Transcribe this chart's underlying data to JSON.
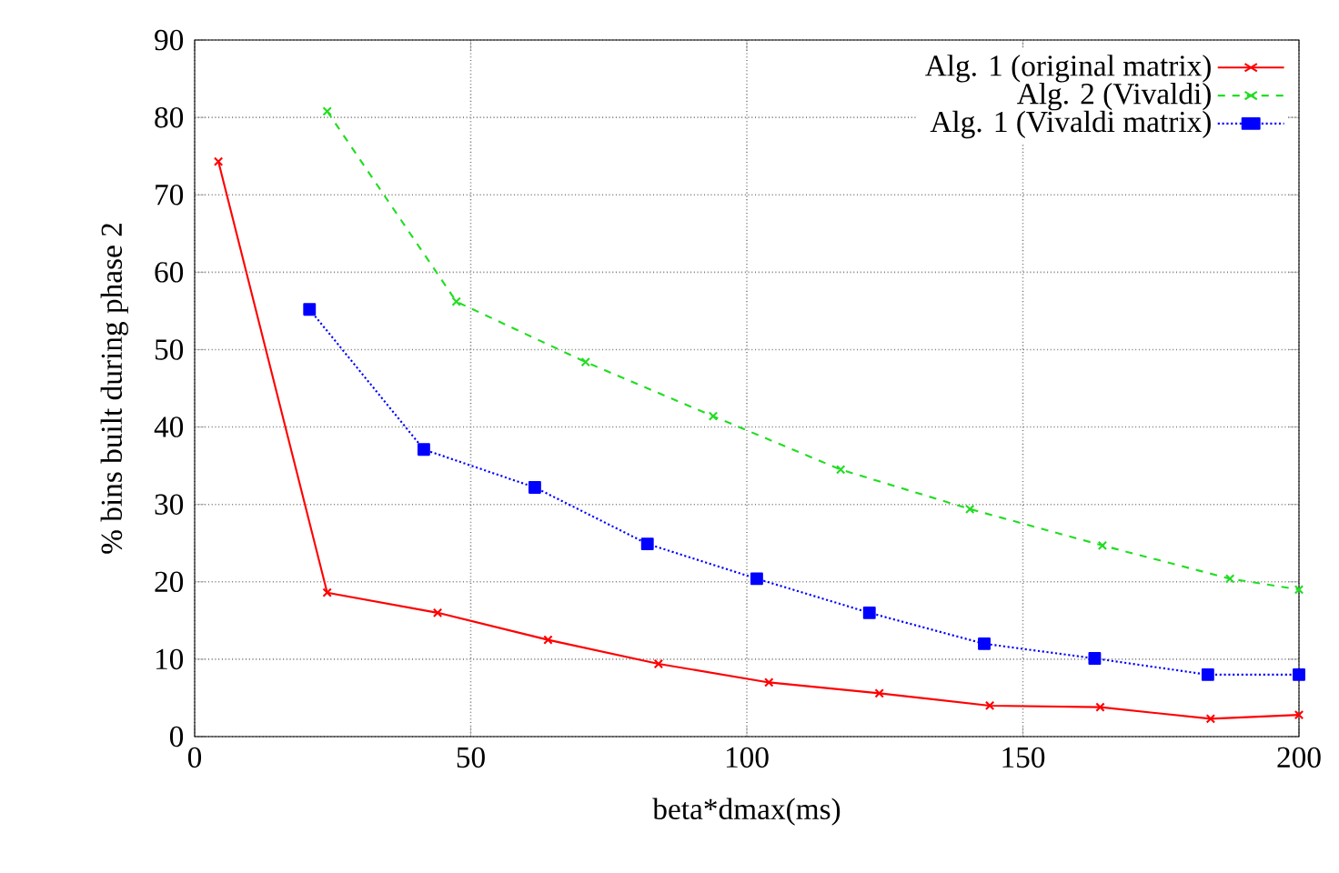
{
  "chart_data": {
    "type": "line",
    "xlabel": "beta*dmax(ms)",
    "ylabel": "% bins built during phase 2",
    "xlim": [
      0,
      200
    ],
    "ylim": [
      0,
      90
    ],
    "xticks": [
      0,
      50,
      100,
      150,
      200
    ],
    "yticks": [
      0,
      10,
      20,
      30,
      40,
      50,
      60,
      70,
      80,
      90
    ],
    "grid": true,
    "legend": "top right",
    "series": [
      {
        "name": "Alg. 1 (original matrix)",
        "color": "#ff0000",
        "marker": "cross",
        "line_style": "solid",
        "x": [
          4.3,
          24,
          44,
          64,
          84,
          104,
          124,
          144,
          164,
          184,
          200
        ],
        "values": [
          74.3,
          18.6,
          16,
          12.5,
          9.4,
          7,
          5.6,
          4,
          3.8,
          2.3,
          2.8
        ]
      },
      {
        "name": "Alg. 2 (Vivaldi)",
        "color": "#22dd22",
        "marker": "cross",
        "line_style": "dashed",
        "x": [
          24,
          47.4,
          70.8,
          93.9,
          117,
          140.4,
          164.4,
          187.5,
          200
        ],
        "values": [
          80.8,
          56.2,
          48.4,
          41.4,
          34.5,
          29.4,
          24.7,
          20.4,
          19
        ]
      },
      {
        "name": "Alg. 1 (Vivaldi matrix)",
        "color": "#0000ff",
        "marker": "square",
        "line_style": "dotted",
        "x": [
          20.8,
          41.5,
          61.6,
          82,
          101.8,
          122.2,
          143,
          163,
          183.5,
          200
        ],
        "values": [
          55.2,
          37.1,
          32.2,
          24.9,
          20.4,
          16,
          12,
          10.1,
          8,
          8
        ]
      }
    ]
  }
}
